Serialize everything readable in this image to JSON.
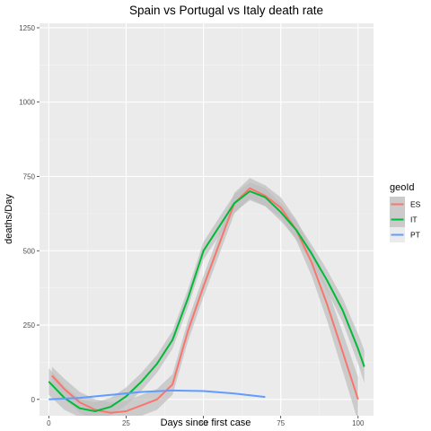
{
  "chart_data": {
    "type": "line",
    "title": "Spain vs Portugal vs Italy death rate",
    "xlabel": "Days since first case",
    "ylabel": "deaths/Day",
    "xlim": [
      -3,
      105
    ],
    "ylim": [
      -55,
      1265
    ],
    "x_ticks": [
      0,
      25,
      50,
      75,
      100
    ],
    "y_ticks": [
      0,
      250,
      500,
      750,
      1000,
      1250
    ],
    "x_tick_labels": [
      "0",
      "25",
      "50",
      "75",
      "100"
    ],
    "y_tick_labels": [
      "0",
      "250",
      "500",
      "750",
      "1000",
      "1250"
    ],
    "grid": true,
    "background": "#ebebeb",
    "legend": {
      "title": "geoId",
      "position": "right"
    },
    "series": [
      {
        "name": "ES",
        "color": "#F8766D",
        "band_color": "#bdbdbd",
        "x": [
          1,
          5,
          10,
          15,
          20,
          25,
          30,
          35,
          40,
          45,
          50,
          55,
          60,
          65,
          70,
          75,
          80,
          85,
          90,
          95,
          100
        ],
        "y": [
          80,
          35,
          -10,
          -35,
          -45,
          -40,
          -20,
          0,
          50,
          230,
          380,
          520,
          660,
          710,
          685,
          645,
          570,
          460,
          320,
          160,
          0
        ],
        "band": [
          30,
          35,
          35,
          35,
          35,
          35,
          35,
          35,
          35,
          35,
          35,
          35,
          35,
          35,
          35,
          35,
          35,
          45,
          55,
          65,
          75
        ]
      },
      {
        "name": "IT",
        "color": "#00BA38",
        "band_color": "#bdbdbd",
        "x": [
          0,
          5,
          10,
          15,
          20,
          25,
          30,
          35,
          40,
          45,
          50,
          55,
          60,
          65,
          70,
          75,
          80,
          85,
          90,
          95,
          100,
          102
        ],
        "y": [
          60,
          5,
          -30,
          -40,
          -25,
          10,
          60,
          120,
          200,
          340,
          500,
          580,
          660,
          700,
          680,
          630,
          570,
          490,
          400,
          300,
          170,
          110
        ],
        "band": [
          45,
          40,
          30,
          30,
          30,
          30,
          30,
          30,
          30,
          30,
          30,
          30,
          30,
          30,
          30,
          30,
          30,
          30,
          35,
          40,
          50,
          55
        ]
      },
      {
        "name": "PT",
        "color": "#619CFF",
        "x": [
          0,
          10,
          20,
          30,
          40,
          50,
          60,
          70
        ],
        "y": [
          0,
          5,
          15,
          25,
          30,
          28,
          20,
          8
        ]
      }
    ]
  }
}
